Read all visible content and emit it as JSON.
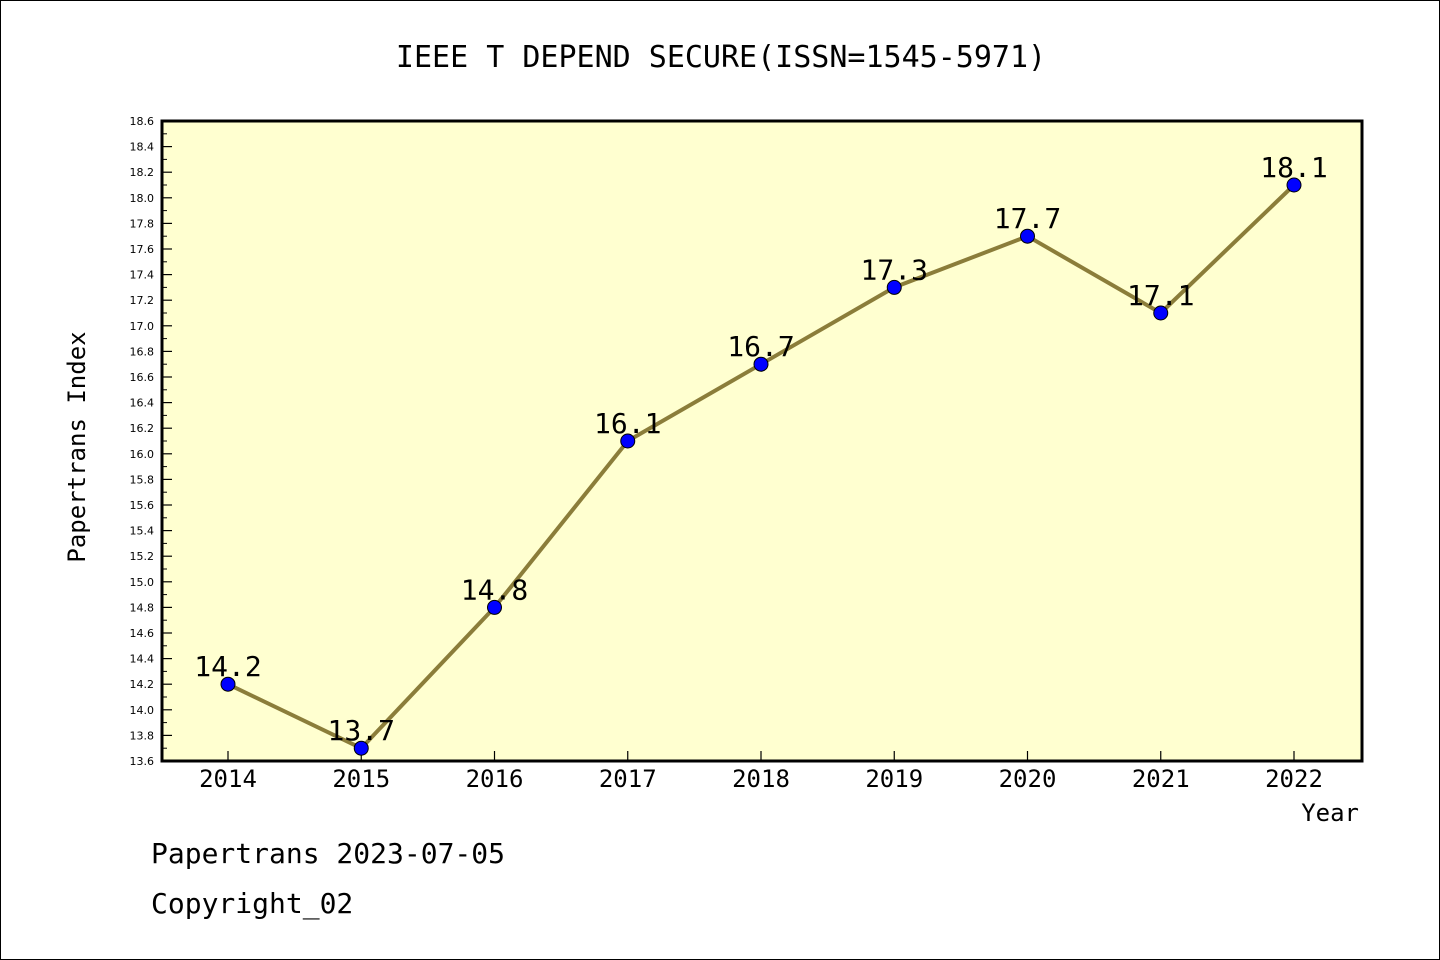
{
  "chart_data": {
    "type": "line",
    "title": "IEEE T DEPEND SECURE(ISSN=1545-5971)",
    "xlabel": "Year",
    "ylabel": "Papertrans Index",
    "categories": [
      "2014",
      "2015",
      "2016",
      "2017",
      "2018",
      "2019",
      "2020",
      "2021",
      "2022"
    ],
    "values": [
      14.2,
      13.7,
      14.8,
      16.1,
      16.7,
      17.3,
      17.7,
      17.1,
      18.1
    ],
    "data_labels": [
      "14.2",
      "13.7",
      "14.8",
      "16.1",
      "16.7",
      "17.3",
      "17.7",
      "17.1",
      "18.1"
    ],
    "ylim": [
      13.6,
      18.6
    ],
    "y_ticks": [
      "13.6",
      "13.8",
      "14.0",
      "14.2",
      "14.4",
      "14.6",
      "14.8",
      "15.0",
      "15.2",
      "15.4",
      "15.6",
      "15.8",
      "16.0",
      "16.2",
      "16.4",
      "16.6",
      "16.8",
      "17.0",
      "17.2",
      "17.4",
      "17.6",
      "17.8",
      "18.0",
      "18.2",
      "18.4",
      "18.6"
    ],
    "grid": false,
    "colors": {
      "plot_background": "#ffffd0",
      "line": "#8b7d3a",
      "marker": "#0000ff"
    }
  },
  "footer": {
    "date_line": "Papertrans 2023-07-05",
    "copyright": "Copyright_02"
  }
}
